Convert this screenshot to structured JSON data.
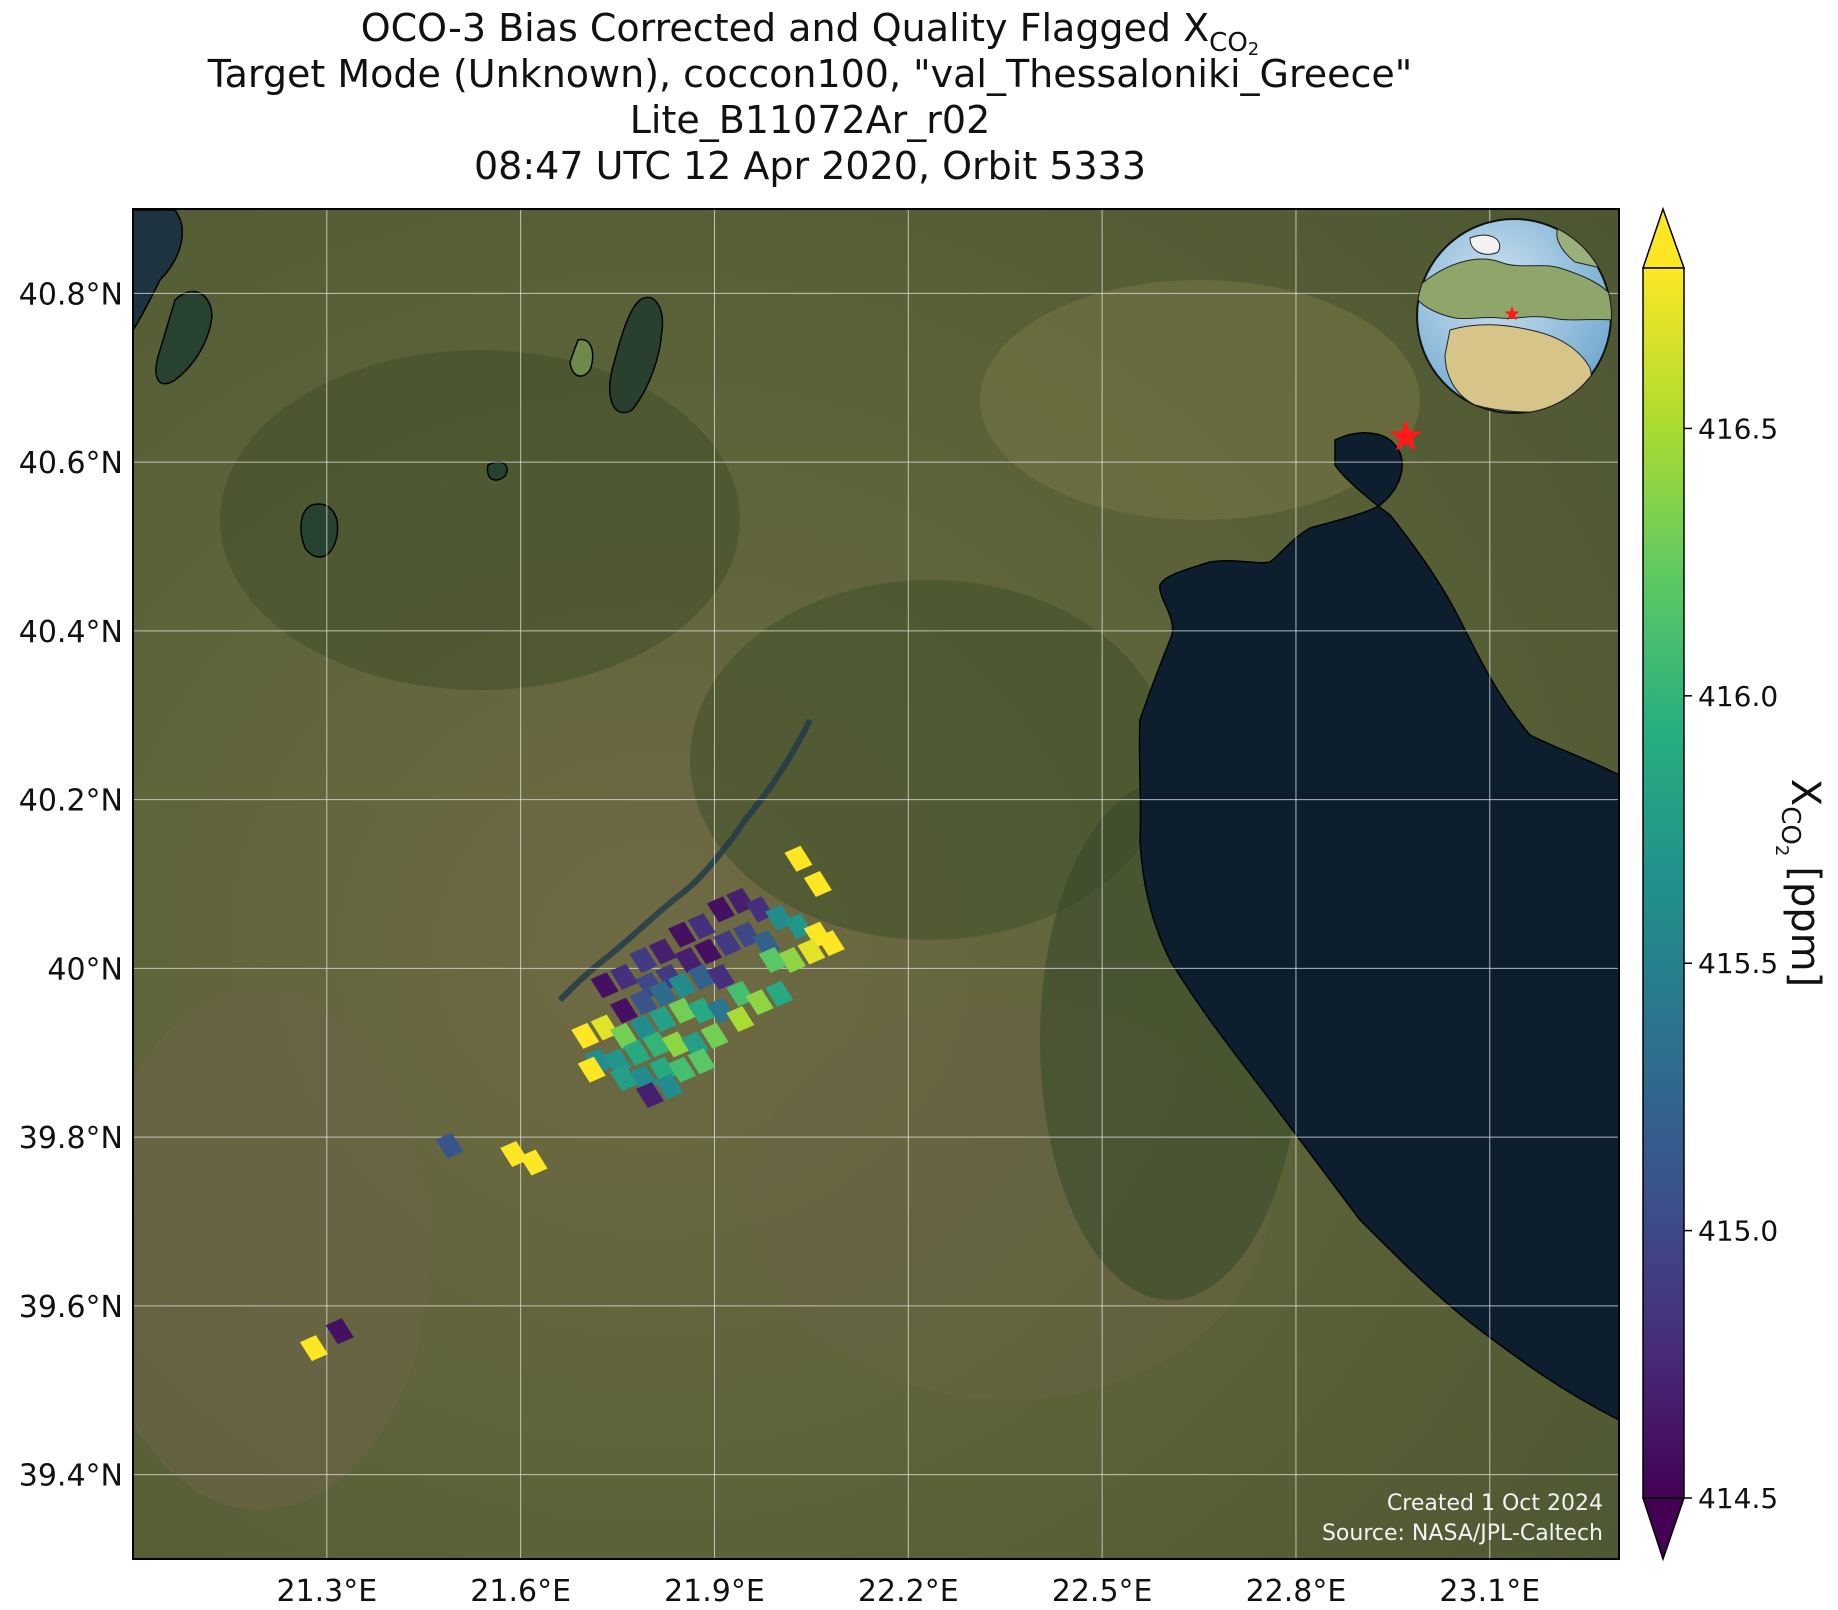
{
  "title": {
    "line1_main": "OCO-3 Bias Corrected and Quality Flagged X",
    "line1_sub": "CO",
    "line1_sub2": "2",
    "line2": "Target Mode (Unknown), coccon100, \"val_Thessaloniki_Greece\"",
    "line3": "Lite_B11072Ar_r02",
    "line4": "08:47 UTC 12 Apr 2020, Orbit 5333"
  },
  "map": {
    "lon_range": [
      21.0,
      23.3
    ],
    "lat_range": [
      39.3,
      40.9
    ],
    "lon_ticks": [
      21.3,
      21.6,
      21.9,
      22.2,
      22.5,
      22.8,
      23.1
    ],
    "lon_tick_labels": [
      "21.3°E",
      "21.6°E",
      "21.9°E",
      "22.2°E",
      "22.5°E",
      "22.8°E",
      "23.1°E"
    ],
    "lat_ticks": [
      39.4,
      39.6,
      39.8,
      40.0,
      40.2,
      40.4,
      40.6,
      40.8
    ],
    "lat_tick_labels": [
      "39.4°N",
      "39.6°N",
      "39.8°N",
      "40°N",
      "40.2°N",
      "40.4°N",
      "40.6°N",
      "40.8°N"
    ],
    "grid": true,
    "basemap": "satellite imagery",
    "target_marker": {
      "lon": 22.97,
      "lat": 40.63,
      "symbol": "red-star",
      "color": "#ff1a1a"
    },
    "inset_globe": {
      "placement": "top-right",
      "marker_color": "#ff1a1a"
    },
    "credit_line1": "Created 1 Oct 2024",
    "credit_line2": "Source: NASA/JPL-Caltech"
  },
  "colorbar": {
    "min": 414.5,
    "max": 416.8,
    "ticks": [
      414.5,
      415.0,
      415.5,
      416.0,
      416.5
    ],
    "tick_labels": [
      "414.5",
      "415.0",
      "415.5",
      "416.0",
      "416.5"
    ],
    "label_main": "X",
    "label_sub": "CO",
    "label_sub2": "2",
    "label_unit": "[ppm]",
    "colormap": "viridis",
    "extend": "both",
    "colors": [
      "#440154",
      "#472d7b",
      "#3b528b",
      "#2c728e",
      "#21918c",
      "#28ae80",
      "#5ec962",
      "#addc30",
      "#fde725"
    ]
  },
  "chart_data": {
    "type": "heatmap",
    "description_units": "XCO2 soundings (lon, lat, ppm)",
    "points": [
      {
        "lon": 21.73,
        "lat": 39.98,
        "v": 414.6
      },
      {
        "lon": 21.76,
        "lat": 39.99,
        "v": 414.8
      },
      {
        "lon": 21.79,
        "lat": 40.01,
        "v": 414.9
      },
      {
        "lon": 21.82,
        "lat": 40.02,
        "v": 414.7
      },
      {
        "lon": 21.85,
        "lat": 40.04,
        "v": 414.6
      },
      {
        "lon": 21.88,
        "lat": 40.05,
        "v": 414.8
      },
      {
        "lon": 21.91,
        "lat": 40.07,
        "v": 414.6
      },
      {
        "lon": 21.94,
        "lat": 40.08,
        "v": 414.7
      },
      {
        "lon": 21.97,
        "lat": 40.07,
        "v": 414.8
      },
      {
        "lon": 22.0,
        "lat": 40.06,
        "v": 415.6
      },
      {
        "lon": 22.03,
        "lat": 40.05,
        "v": 415.7
      },
      {
        "lon": 22.06,
        "lat": 40.04,
        "v": 416.8
      },
      {
        "lon": 22.08,
        "lat": 40.03,
        "v": 416.8
      },
      {
        "lon": 22.05,
        "lat": 40.02,
        "v": 416.7
      },
      {
        "lon": 22.02,
        "lat": 40.01,
        "v": 416.4
      },
      {
        "lon": 21.8,
        "lat": 39.98,
        "v": 415.0
      },
      {
        "lon": 21.83,
        "lat": 39.99,
        "v": 414.9
      },
      {
        "lon": 21.86,
        "lat": 40.01,
        "v": 414.7
      },
      {
        "lon": 21.89,
        "lat": 40.02,
        "v": 414.6
      },
      {
        "lon": 21.92,
        "lat": 40.03,
        "v": 414.9
      },
      {
        "lon": 21.95,
        "lat": 40.04,
        "v": 415.0
      },
      {
        "lon": 21.98,
        "lat": 40.03,
        "v": 415.2
      },
      {
        "lon": 21.99,
        "lat": 40.01,
        "v": 416.2
      },
      {
        "lon": 21.76,
        "lat": 39.95,
        "v": 414.6
      },
      {
        "lon": 21.79,
        "lat": 39.96,
        "v": 415.1
      },
      {
        "lon": 21.82,
        "lat": 39.97,
        "v": 415.3
      },
      {
        "lon": 21.85,
        "lat": 39.98,
        "v": 415.6
      },
      {
        "lon": 21.88,
        "lat": 39.99,
        "v": 415.2
      },
      {
        "lon": 21.91,
        "lat": 39.99,
        "v": 414.8
      },
      {
        "lon": 21.94,
        "lat": 39.97,
        "v": 416.1
      },
      {
        "lon": 21.97,
        "lat": 39.96,
        "v": 416.4
      },
      {
        "lon": 22.0,
        "lat": 39.97,
        "v": 415.9
      },
      {
        "lon": 21.7,
        "lat": 39.92,
        "v": 416.8
      },
      {
        "lon": 21.73,
        "lat": 39.93,
        "v": 416.7
      },
      {
        "lon": 21.76,
        "lat": 39.92,
        "v": 416.3
      },
      {
        "lon": 21.79,
        "lat": 39.93,
        "v": 415.6
      },
      {
        "lon": 21.82,
        "lat": 39.94,
        "v": 415.8
      },
      {
        "lon": 21.85,
        "lat": 39.95,
        "v": 416.3
      },
      {
        "lon": 21.88,
        "lat": 39.95,
        "v": 415.9
      },
      {
        "lon": 21.91,
        "lat": 39.95,
        "v": 415.4
      },
      {
        "lon": 21.94,
        "lat": 39.94,
        "v": 416.5
      },
      {
        "lon": 21.72,
        "lat": 39.89,
        "v": 415.6
      },
      {
        "lon": 21.75,
        "lat": 39.89,
        "v": 415.7
      },
      {
        "lon": 21.78,
        "lat": 39.9,
        "v": 415.9
      },
      {
        "lon": 21.81,
        "lat": 39.91,
        "v": 416.0
      },
      {
        "lon": 21.84,
        "lat": 39.91,
        "v": 416.4
      },
      {
        "lon": 21.87,
        "lat": 39.91,
        "v": 415.8
      },
      {
        "lon": 21.9,
        "lat": 39.92,
        "v": 416.3
      },
      {
        "lon": 21.76,
        "lat": 39.87,
        "v": 415.8
      },
      {
        "lon": 21.79,
        "lat": 39.87,
        "v": 415.6
      },
      {
        "lon": 21.82,
        "lat": 39.88,
        "v": 415.9
      },
      {
        "lon": 21.85,
        "lat": 39.88,
        "v": 416.1
      },
      {
        "lon": 21.88,
        "lat": 39.89,
        "v": 416.2
      },
      {
        "lon": 21.8,
        "lat": 39.85,
        "v": 414.7
      },
      {
        "lon": 21.83,
        "lat": 39.86,
        "v": 415.6
      },
      {
        "lon": 21.71,
        "lat": 39.88,
        "v": 416.8
      },
      {
        "lon": 22.03,
        "lat": 40.13,
        "v": 416.8
      },
      {
        "lon": 22.06,
        "lat": 40.1,
        "v": 416.8
      },
      {
        "lon": 21.49,
        "lat": 39.79,
        "v": 415.1
      },
      {
        "lon": 21.59,
        "lat": 39.78,
        "v": 416.8
      },
      {
        "lon": 21.62,
        "lat": 39.77,
        "v": 416.8
      },
      {
        "lon": 21.32,
        "lat": 39.57,
        "v": 414.6
      },
      {
        "lon": 21.28,
        "lat": 39.55,
        "v": 416.8
      }
    ],
    "xlabel": "",
    "ylabel": ""
  }
}
